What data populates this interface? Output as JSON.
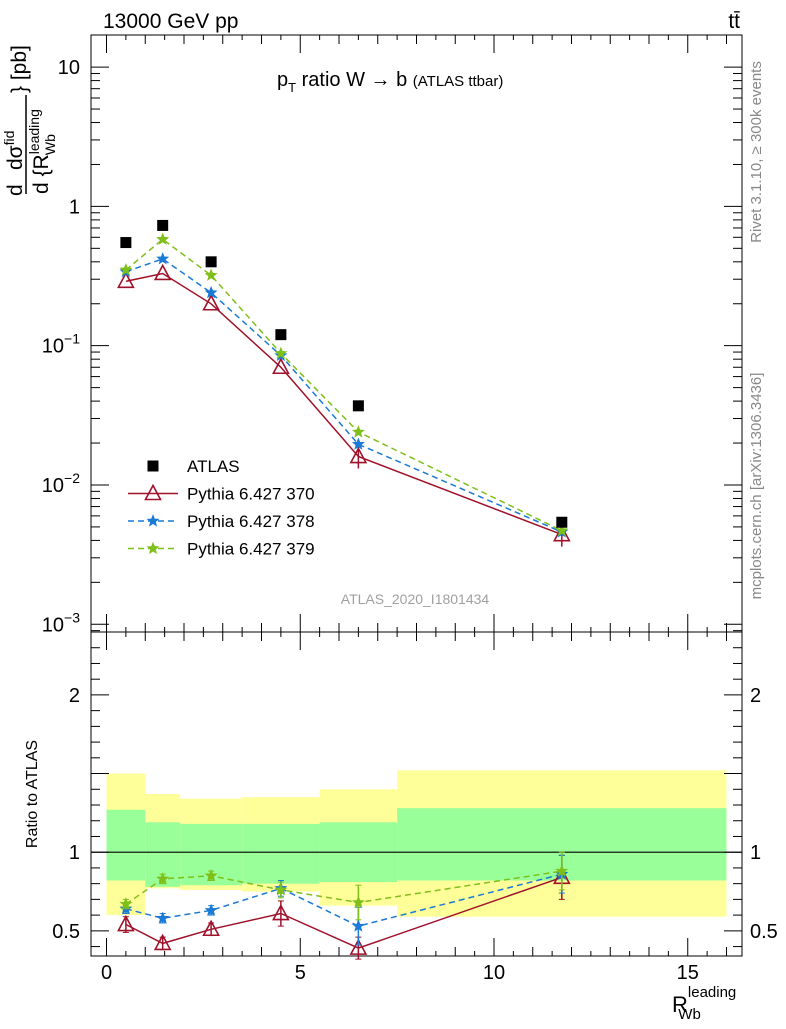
{
  "header": {
    "left": "13000 GeV pp",
    "right": "tt̄"
  },
  "side_labels": {
    "rivet": "Rivet 3.1.10, ≥ 300k events",
    "mcplots": "mcplots.cern.ch [arXiv:1306.3436]"
  },
  "chart_data": {
    "type": "line",
    "title_main": "p",
    "title_sub": "T",
    "title_rest": " ratio W → b",
    "title_small": "(ATLAS ttbar)",
    "watermark": "ATLAS_2020_I1801434",
    "ylabel_main": {
      "d1": "d",
      "sigma": "dσ",
      "sigma_sup": "fid",
      "d2": "d {R",
      "r_sup": "leading",
      "r_sub": "Wb",
      "close": "} [pb]"
    },
    "xlabel": {
      "main": "R",
      "sup": "leading",
      "sub": "Wb"
    },
    "ylabel_ratio": "Ratio to ATLAS",
    "x_ticks": [
      "0",
      "5",
      "10",
      "15"
    ],
    "xlim": [
      -0.4,
      16.4
    ],
    "main_ylim": [
      0.00088,
      17
    ],
    "main_yscale": "log",
    "main_y_ticks": [
      {
        "value": 10,
        "label": "10"
      },
      {
        "value": 1,
        "label": "1"
      },
      {
        "value": 0.1,
        "base": "10",
        "exp": "−1"
      },
      {
        "value": 0.01,
        "base": "10",
        "exp": "−2"
      },
      {
        "value": 0.001,
        "base": "10",
        "exp": "−3"
      }
    ],
    "ratio_ylim": [
      0.34,
      2.4
    ],
    "ratio_y_ticks": [
      "0.5",
      "1",
      "2"
    ],
    "bins": [
      {
        "lo": 0,
        "hi": 1,
        "x": 0.5
      },
      {
        "lo": 1,
        "hi": 1.9,
        "x": 1.45
      },
      {
        "lo": 1.9,
        "hi": 3.5,
        "x": 2.7
      },
      {
        "lo": 3.5,
        "hi": 5.5,
        "x": 4.5
      },
      {
        "lo": 5.5,
        "hi": 7.5,
        "x": 6.5
      },
      {
        "lo": 7.5,
        "hi": 16,
        "x": 11.75
      }
    ],
    "atlas": {
      "name": "ATLAS",
      "values": [
        0.55,
        0.73,
        0.4,
        0.12,
        0.037,
        0.0054
      ],
      "band_inner": [
        [
          0.82,
          1.27
        ],
        [
          0.78,
          1.19
        ],
        [
          0.79,
          1.18
        ],
        [
          0.8,
          1.18
        ],
        [
          0.81,
          1.19
        ],
        [
          0.82,
          1.28
        ]
      ],
      "band_outer": [
        [
          0.6,
          1.5
        ],
        [
          0.77,
          1.37
        ],
        [
          0.76,
          1.34
        ],
        [
          0.75,
          1.35
        ],
        [
          0.66,
          1.4
        ],
        [
          0.59,
          1.52
        ]
      ]
    },
    "series": [
      {
        "name": "Pythia 6.427 370",
        "color": "#a0112a",
        "marker": "triangle",
        "dash": "",
        "values": [
          0.29,
          0.33,
          0.2,
          0.07,
          0.016,
          0.0044
        ],
        "ratio": [
          0.54,
          0.42,
          0.51,
          0.61,
          0.39,
          0.84
        ],
        "ratio_err": [
          0.05,
          0.04,
          0.04,
          0.08,
          0.07,
          0.14
        ]
      },
      {
        "name": "Pythia 6.427 378",
        "color": "#1a7ad6",
        "marker": "star",
        "dash": "6,4",
        "values": [
          0.34,
          0.42,
          0.24,
          0.085,
          0.0196,
          0.0046
        ],
        "ratio": [
          0.64,
          0.58,
          0.63,
          0.77,
          0.53,
          0.86
        ],
        "ratio_err": [
          0.03,
          0.03,
          0.03,
          0.05,
          0.12,
          0.12
        ]
      },
      {
        "name": "Pythia 6.427 379",
        "color": "#7fbf1a",
        "marker": "star",
        "dash": "6,4",
        "values": [
          0.35,
          0.58,
          0.32,
          0.088,
          0.024,
          0.0047
        ],
        "ratio": [
          0.67,
          0.83,
          0.85,
          0.76,
          0.68,
          0.88
        ],
        "ratio_err": [
          0.03,
          0.03,
          0.03,
          0.05,
          0.11,
          0.12
        ]
      }
    ]
  }
}
